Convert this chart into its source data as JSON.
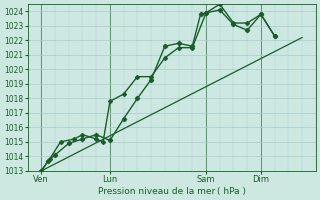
{
  "xlabel": "Pression niveau de la mer ( hPa )",
  "bg_color": "#cce8e0",
  "grid_color_major": "#aacccc",
  "grid_color_minor": "#bbdddd",
  "line_color": "#1a5c2a",
  "ylim": [
    1013,
    1024.5
  ],
  "yticks": [
    1013,
    1014,
    1015,
    1016,
    1017,
    1018,
    1019,
    1020,
    1021,
    1022,
    1023,
    1024
  ],
  "xtick_labels": [
    "Ven",
    "Lun",
    "Sam",
    "Dim"
  ],
  "xtick_pos": [
    0.5,
    3.0,
    6.5,
    8.5
  ],
  "xlim": [
    0,
    10.5
  ],
  "vline_x": [
    0.5,
    3.0,
    6.5,
    8.5
  ],
  "series1_x": [
    0.5,
    0.75,
    1.0,
    1.5,
    2.0,
    2.5,
    3.0,
    3.5,
    4.0,
    4.5,
    5.0,
    5.5,
    6.0,
    6.3,
    6.5,
    7.0,
    7.5,
    8.0,
    8.5,
    9.0
  ],
  "series1_y": [
    1013.0,
    1013.7,
    1014.1,
    1014.9,
    1015.2,
    1015.5,
    1015.1,
    1016.6,
    1018.0,
    1019.3,
    1021.6,
    1021.8,
    1021.6,
    1023.8,
    1023.9,
    1024.1,
    1023.1,
    1022.7,
    1023.8,
    1022.3
  ],
  "series2_x": [
    0.5,
    0.8,
    1.2,
    1.7,
    2.0,
    2.5,
    2.75,
    3.0,
    3.5,
    4.0,
    4.5,
    5.0,
    5.5,
    6.0,
    6.5,
    7.0,
    7.5,
    8.0,
    8.5,
    9.0
  ],
  "series2_y": [
    1013.0,
    1013.8,
    1015.0,
    1015.2,
    1015.5,
    1015.2,
    1015.0,
    1017.8,
    1018.3,
    1019.5,
    1019.5,
    1020.8,
    1021.5,
    1021.5,
    1023.9,
    1024.5,
    1023.2,
    1023.2,
    1023.8,
    1022.3
  ],
  "trend_x": [
    0.5,
    10.0
  ],
  "trend_y": [
    1013.0,
    1022.2
  ]
}
